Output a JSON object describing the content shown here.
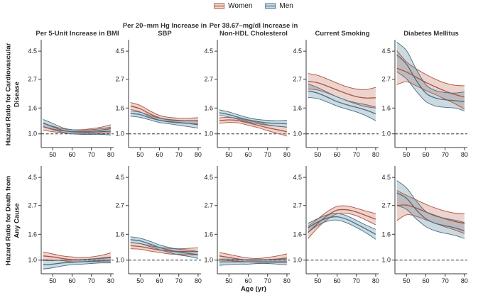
{
  "legend": {
    "items": [
      {
        "label": "Women"
      },
      {
        "label": "Men"
      }
    ]
  },
  "colors": {
    "women_line": "#ad523d",
    "women_fill": "rgba(193,110,88,0.30)",
    "women_fill_solid": "#f1dcd3",
    "men_line": "#41708a",
    "men_fill": "rgba(90,128,150,0.30)",
    "men_fill_solid": "#cfdde2",
    "axis": "#3a3a3a",
    "text": "#1a1a1a",
    "ref_line": "#2a2a2a"
  },
  "chart_data": {
    "type": "line",
    "subtype": "smoothed hazard-ratio curves with shaded 95% CI bands",
    "x": [
      45,
      50,
      55,
      60,
      65,
      70,
      75,
      80
    ],
    "x_ticks": [
      "50",
      "60",
      "70",
      "80"
    ],
    "xlabel": "Age (yr)",
    "x_range": [
      44,
      81.5
    ],
    "y_ticks": [
      "1.0",
      "1.6",
      "2.7",
      "4.5"
    ],
    "y_scale": "log",
    "y_range": [
      0.78,
      5.4
    ],
    "reference_line": 1.0,
    "legend_position": "top-center",
    "grid": false,
    "series_names": [
      "Women",
      "Men"
    ],
    "col_titles": [
      "Per 5-Unit Increase in BMI",
      "Per 20–mm Hg Increase in SBP",
      "Per 38.67–mg/dl Increase in Non-HDL Cholesterol",
      "Current Smoking",
      "Diabetes Mellitus"
    ],
    "rows": [
      {
        "ylabel": "Hazard Ratio for Cardiovascular Disease",
        "panels": [
          {
            "risk_factor": "BMI",
            "women": {
              "mid": [
                1.14,
                1.09,
                1.06,
                1.04,
                1.04,
                1.05,
                1.07,
                1.1
              ],
              "lo": [
                1.07,
                1.04,
                1.02,
                1.0,
                1.0,
                1.0,
                1.01,
                1.02
              ],
              "hi": [
                1.21,
                1.15,
                1.1,
                1.08,
                1.08,
                1.1,
                1.13,
                1.18
              ]
            },
            "men": {
              "mid": [
                1.22,
                1.14,
                1.07,
                1.04,
                1.03,
                1.03,
                1.04,
                1.05
              ],
              "lo": [
                1.14,
                1.08,
                1.03,
                1.0,
                0.99,
                0.99,
                0.99,
                0.98
              ],
              "hi": [
                1.3,
                1.21,
                1.12,
                1.08,
                1.07,
                1.08,
                1.1,
                1.13
              ]
            }
          },
          {
            "risk_factor": "SBP",
            "women": {
              "mid": [
                1.66,
                1.58,
                1.44,
                1.34,
                1.29,
                1.27,
                1.27,
                1.27
              ],
              "lo": [
                1.56,
                1.49,
                1.37,
                1.28,
                1.24,
                1.22,
                1.21,
                1.2
              ],
              "hi": [
                1.77,
                1.68,
                1.52,
                1.4,
                1.35,
                1.33,
                1.33,
                1.34
              ]
            },
            "men": {
              "mid": [
                1.45,
                1.42,
                1.34,
                1.28,
                1.25,
                1.23,
                1.21,
                1.18
              ],
              "lo": [
                1.38,
                1.35,
                1.29,
                1.23,
                1.2,
                1.17,
                1.14,
                1.11
              ],
              "hi": [
                1.52,
                1.48,
                1.4,
                1.33,
                1.3,
                1.28,
                1.27,
                1.26
              ]
            }
          },
          {
            "risk_factor": "Non-HDL Cholesterol",
            "women": {
              "mid": [
                1.27,
                1.29,
                1.27,
                1.22,
                1.17,
                1.12,
                1.08,
                1.04
              ],
              "lo": [
                1.21,
                1.23,
                1.22,
                1.17,
                1.12,
                1.06,
                1.01,
                0.96
              ],
              "hi": [
                1.34,
                1.35,
                1.32,
                1.27,
                1.23,
                1.18,
                1.15,
                1.13
              ]
            },
            "men": {
              "mid": [
                1.47,
                1.42,
                1.35,
                1.29,
                1.25,
                1.22,
                1.21,
                1.2
              ],
              "lo": [
                1.4,
                1.36,
                1.3,
                1.24,
                1.2,
                1.17,
                1.15,
                1.13
              ],
              "hi": [
                1.55,
                1.49,
                1.41,
                1.34,
                1.3,
                1.28,
                1.27,
                1.28
              ]
            }
          },
          {
            "risk_factor": "Current Smoking",
            "women": {
              "mid": [
                2.6,
                2.53,
                2.38,
                2.22,
                2.08,
                1.97,
                1.92,
                1.93
              ],
              "lo": [
                2.26,
                2.22,
                2.1,
                1.96,
                1.83,
                1.72,
                1.64,
                1.6
              ],
              "hi": [
                3.0,
                2.9,
                2.71,
                2.52,
                2.36,
                2.26,
                2.24,
                2.33
              ]
            },
            "men": {
              "mid": [
                2.18,
                2.1,
                1.95,
                1.8,
                1.7,
                1.62,
                1.54,
                1.44
              ],
              "lo": [
                1.94,
                1.9,
                1.78,
                1.66,
                1.57,
                1.49,
                1.39,
                1.27
              ],
              "hi": [
                2.48,
                2.32,
                2.13,
                1.96,
                1.84,
                1.76,
                1.7,
                1.63
              ]
            }
          },
          {
            "risk_factor": "Diabetes Mellitus",
            "women": {
              "mid": [
                3.3,
                3.08,
                2.8,
                2.55,
                2.35,
                2.18,
                2.05,
                1.95
              ],
              "lo": [
                2.45,
                2.58,
                2.4,
                2.2,
                2.04,
                1.88,
                1.73,
                1.57
              ],
              "hi": [
                4.55,
                3.7,
                3.27,
                2.95,
                2.7,
                2.52,
                2.42,
                2.4
              ]
            },
            "men": {
              "mid": [
                4.2,
                3.55,
                2.65,
                2.1,
                1.92,
                1.86,
                1.83,
                1.8
              ],
              "lo": [
                3.1,
                2.72,
                2.18,
                1.8,
                1.66,
                1.62,
                1.6,
                1.52
              ],
              "hi": [
                5.3,
                4.55,
                3.25,
                2.45,
                2.2,
                2.12,
                2.1,
                2.15
              ]
            }
          }
        ]
      },
      {
        "ylabel": "Hazard Ratio for Death from Any Cause",
        "panels": [
          {
            "risk_factor": "BMI",
            "women": {
              "mid": [
                1.08,
                1.06,
                1.03,
                1.01,
                1.01,
                1.02,
                1.03,
                1.05
              ],
              "lo": [
                1.01,
                1.0,
                0.99,
                0.97,
                0.97,
                0.97,
                0.97,
                0.97
              ],
              "hi": [
                1.16,
                1.12,
                1.08,
                1.06,
                1.05,
                1.06,
                1.09,
                1.14
              ]
            },
            "men": {
              "mid": [
                0.92,
                0.93,
                0.95,
                0.96,
                0.97,
                0.98,
                0.99,
                1.0
              ],
              "lo": [
                0.85,
                0.87,
                0.9,
                0.92,
                0.93,
                0.94,
                0.95,
                0.95
              ],
              "hi": [
                0.99,
                0.99,
                1.0,
                1.0,
                1.01,
                1.02,
                1.04,
                1.06
              ]
            }
          },
          {
            "risk_factor": "SBP",
            "women": {
              "mid": [
                1.3,
                1.28,
                1.24,
                1.2,
                1.18,
                1.17,
                1.17,
                1.17
              ],
              "lo": [
                1.23,
                1.22,
                1.18,
                1.15,
                1.12,
                1.11,
                1.1,
                1.1
              ],
              "hi": [
                1.38,
                1.35,
                1.3,
                1.26,
                1.24,
                1.23,
                1.24,
                1.25
              ]
            },
            "men": {
              "mid": [
                1.45,
                1.42,
                1.34,
                1.26,
                1.2,
                1.16,
                1.13,
                1.1
              ],
              "lo": [
                1.37,
                1.35,
                1.28,
                1.21,
                1.15,
                1.1,
                1.07,
                1.03
              ],
              "hi": [
                1.53,
                1.49,
                1.41,
                1.32,
                1.26,
                1.22,
                1.2,
                1.17
              ]
            }
          },
          {
            "risk_factor": "Non-HDL Cholesterol",
            "women": {
              "mid": [
                1.08,
                1.05,
                1.02,
                1.0,
                1.0,
                1.01,
                1.02,
                1.04
              ],
              "lo": [
                1.0,
                0.99,
                0.98,
                0.97,
                0.96,
                0.96,
                0.96,
                0.96
              ],
              "hi": [
                1.15,
                1.11,
                1.07,
                1.04,
                1.03,
                1.05,
                1.08,
                1.12
              ]
            },
            "men": {
              "mid": [
                0.97,
                0.97,
                0.97,
                0.97,
                0.97,
                0.97,
                0.97,
                0.97
              ],
              "lo": [
                0.91,
                0.92,
                0.93,
                0.93,
                0.94,
                0.94,
                0.93,
                0.92
              ],
              "hi": [
                1.02,
                1.02,
                1.01,
                1.01,
                1.01,
                1.01,
                1.01,
                1.02
              ]
            }
          },
          {
            "risk_factor": "Current Smoking",
            "women": {
              "mid": [
                1.65,
                1.95,
                2.25,
                2.48,
                2.5,
                2.4,
                2.25,
                2.1
              ],
              "lo": [
                1.48,
                1.8,
                2.1,
                2.32,
                2.34,
                2.24,
                2.07,
                1.9
              ],
              "hi": [
                1.85,
                2.12,
                2.42,
                2.66,
                2.68,
                2.57,
                2.44,
                2.33
              ]
            },
            "men": {
              "mid": [
                1.8,
                2.0,
                2.15,
                2.2,
                2.1,
                1.93,
                1.76,
                1.6
              ],
              "lo": [
                1.66,
                1.88,
                2.03,
                2.07,
                1.97,
                1.81,
                1.64,
                1.46
              ],
              "hi": [
                1.95,
                2.13,
                2.28,
                2.34,
                2.24,
                2.06,
                1.89,
                1.75
              ]
            }
          },
          {
            "risk_factor": "Diabetes Mellitus",
            "women": {
              "mid": [
                2.7,
                2.72,
                2.58,
                2.4,
                2.25,
                2.12,
                2.02,
                1.95
              ],
              "lo": [
                2.05,
                2.28,
                2.22,
                2.08,
                1.95,
                1.83,
                1.73,
                1.62
              ],
              "hi": [
                3.55,
                3.25,
                3.0,
                2.76,
                2.58,
                2.44,
                2.35,
                2.33
              ]
            },
            "men": {
              "mid": [
                3.4,
                3.08,
                2.5,
                2.12,
                1.95,
                1.87,
                1.8,
                1.7
              ],
              "lo": [
                2.7,
                2.52,
                2.12,
                1.84,
                1.7,
                1.63,
                1.57,
                1.48
              ],
              "hi": [
                4.25,
                3.72,
                2.94,
                2.42,
                2.23,
                2.14,
                2.07,
                1.98
              ]
            }
          }
        ]
      }
    ]
  }
}
